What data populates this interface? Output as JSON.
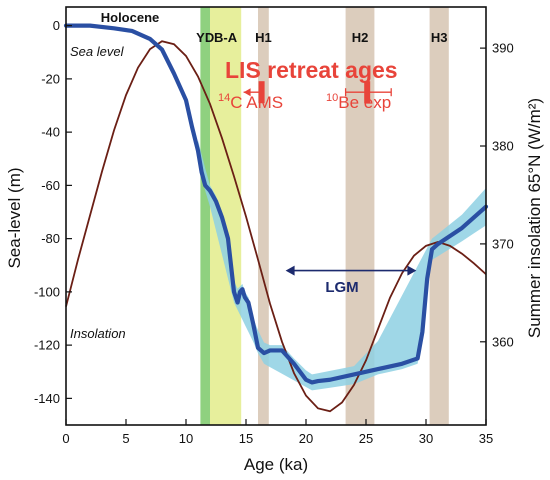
{
  "chart_data": {
    "type": "line",
    "xlabel": "Age (ka)",
    "ylabel": "Sea-level (m)",
    "y2label": "Summer insolation 65°N (W/m²)",
    "xlim": [
      0,
      35
    ],
    "ylim": [
      -150,
      7
    ],
    "y2lim": [
      351.5,
      394.2
    ],
    "x_ticks": [
      0,
      5,
      10,
      15,
      20,
      25,
      30,
      35
    ],
    "y_ticks": [
      0,
      -20,
      -40,
      -60,
      -80,
      -100,
      -120,
      -140
    ],
    "y2_ticks": [
      360,
      370,
      380,
      390
    ],
    "grid": false,
    "bands": [
      {
        "label": "YD",
        "from": 11.2,
        "to": 12.0,
        "color": "#8fd17f"
      },
      {
        "label": "B-A",
        "from": 12.0,
        "to": 14.6,
        "color": "#e7ef9c"
      },
      {
        "label": "H1",
        "from": 16.0,
        "to": 16.9,
        "color": "#dccdbd"
      },
      {
        "label": "H2",
        "from": 23.3,
        "to": 25.7,
        "color": "#dccdbd"
      },
      {
        "label": "H3",
        "from": 30.3,
        "to": 31.9,
        "color": "#dccdbd"
      }
    ],
    "top_label": "Holocene",
    "series": [
      {
        "name": "Sea level",
        "axis": "left",
        "color": "#2a4fa3",
        "x": [
          0,
          2,
          4,
          5.5,
          7,
          8,
          9,
          10,
          10.5,
          11,
          11.3,
          11.6,
          12,
          12.5,
          13,
          13.5,
          14,
          14.3,
          14.5,
          14.7,
          14.9,
          15.2,
          15.6,
          16,
          16.5,
          17,
          18,
          19,
          20,
          20.5,
          21,
          22,
          24,
          26,
          28,
          29.3,
          29.7,
          30.1,
          30.5,
          31,
          32,
          33,
          34,
          35
        ],
        "y": [
          0,
          0,
          -1,
          -2,
          -5,
          -9,
          -18,
          -28,
          -38,
          -47,
          -55,
          -60,
          -62,
          -66,
          -72,
          -80,
          -100,
          -104,
          -100,
          -99,
          -102,
          -104,
          -112,
          -121,
          -123,
          -122,
          -122,
          -127,
          -133,
          -134,
          -133.5,
          -133,
          -131,
          -129,
          -127,
          -125,
          -115,
          -95,
          -84,
          -82,
          -79,
          -76,
          -72,
          -68
        ],
        "uncertainty": [
          {
            "x": 11,
            "lo": -50,
            "hi": -43
          },
          {
            "x": 14,
            "lo": -104,
            "hi": -96
          },
          {
            "x": 16.5,
            "lo": -127,
            "hi": -119
          },
          {
            "x": 20.5,
            "lo": -137,
            "hi": -131
          },
          {
            "x": 25,
            "lo": -134,
            "hi": -127
          },
          {
            "x": 30.5,
            "lo": -88,
            "hi": -80
          },
          {
            "x": 33,
            "lo": -81,
            "hi": -71
          },
          {
            "x": 35,
            "lo": -75,
            "hi": -61
          }
        ]
      },
      {
        "name": "Insolation",
        "axis": "right",
        "color": "#6b1f15",
        "x": [
          0,
          1,
          2,
          3,
          4,
          5,
          6,
          7,
          8,
          9,
          10,
          11,
          12,
          13,
          14,
          15,
          16,
          17,
          18,
          19,
          20,
          21,
          22,
          23,
          24,
          25,
          26,
          27,
          28,
          29,
          30,
          31,
          32,
          33,
          34,
          35
        ],
        "y": [
          363.6,
          368.4,
          372.9,
          377.4,
          381.6,
          385.2,
          388.0,
          389.9,
          390.7,
          390.4,
          389.2,
          387.1,
          384.3,
          380.8,
          376.9,
          372.8,
          368.4,
          363.9,
          360.0,
          356.8,
          354.5,
          353.2,
          352.9,
          353.8,
          355.6,
          358.1,
          361.3,
          364.5,
          367.0,
          368.8,
          369.8,
          370.2,
          369.8,
          369.0,
          368.0,
          366.9
        ]
      }
    ],
    "annotations": {
      "sea_level_label": "Sea level",
      "insolation_label": "Insolation",
      "lis_title": "LIS retreat ages",
      "c14_label": "14C AMS",
      "c14_sup": "14",
      "c14_text": "C AMS",
      "be10_sup": "10",
      "be10_text": "Be exp",
      "c14_point": {
        "x": 16.3,
        "err_minus": 1.5,
        "err_plus": 0,
        "sea_level_pos": -25
      },
      "be10_point": {
        "x": 25.1,
        "err_minus": 1.8,
        "err_plus": 2.0,
        "sea_level_pos": -25
      },
      "lgm_label": "LGM",
      "lgm_range": [
        18.3,
        29.2
      ],
      "lgm_y": -92
    },
    "colors": {
      "sea_level": "#2a4fa3",
      "sea_level_band": "#8ed0e3",
      "insolation": "#6b1f15",
      "lis_red": "#e8443a",
      "lgm_arrow": "#1c2a6e"
    }
  }
}
